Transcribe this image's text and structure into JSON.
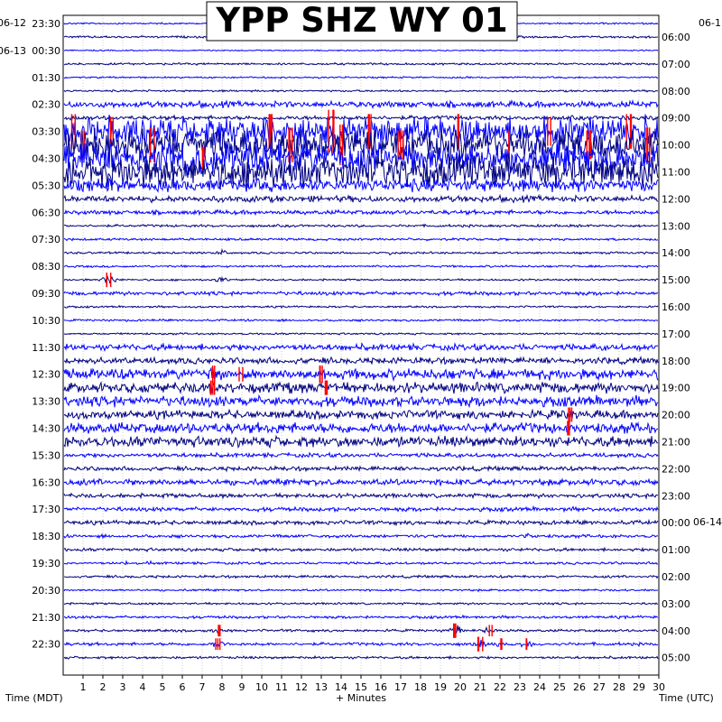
{
  "chart_data": {
    "type": "line",
    "title": "YPP SHZ WY 01",
    "xlabel": "+ Minutes",
    "xlim": [
      0,
      30
    ],
    "x_ticks": [
      "1",
      "2",
      "3",
      "4",
      "5",
      "6",
      "7",
      "8",
      "9",
      "10",
      "11",
      "12",
      "13",
      "14",
      "15",
      "16",
      "17",
      "18",
      "19",
      "20",
      "21",
      "22",
      "23",
      "24",
      "25",
      "26",
      "27",
      "28",
      "29",
      "30"
    ],
    "left_axis_title": "Time (MDT)",
    "right_axis_title": "Time (UTC)",
    "left_date_labels": [
      "06-12",
      "06-13"
    ],
    "right_date_labels": [
      "06-1",
      "06-14"
    ],
    "left_time_labels": [
      "23:30",
      "00:30",
      "01:30",
      "02:30",
      "03:30",
      "04:30",
      "05:30",
      "06:30",
      "07:30",
      "08:30",
      "09:30",
      "10:30",
      "11:30",
      "12:30",
      "13:30",
      "14:30",
      "15:30",
      "16:30",
      "17:30",
      "18:30",
      "19:30",
      "20:30",
      "21:30",
      "22:30"
    ],
    "right_time_labels": [
      "06:00",
      "07:00",
      "08:00",
      "09:00",
      "10:00",
      "11:00",
      "12:00",
      "13:00",
      "14:00",
      "15:00",
      "16:00",
      "17:00",
      "18:00",
      "19:00",
      "20:00",
      "21:00",
      "22:00",
      "23:00",
      "00:00",
      "01:00",
      "02:00",
      "03:00",
      "04:00",
      "05:00"
    ],
    "trace_colors": [
      "#0000ff",
      "#000080"
    ],
    "clip_color": "#ff0000",
    "rows_per_label": 2,
    "trace_amplitude": [
      0.8,
      1,
      0.6,
      1,
      0.8,
      0.9,
      3,
      2,
      14,
      14,
      15,
      15,
      6,
      3,
      2,
      1.2,
      1.1,
      1,
      1,
      0.9,
      1.8,
      0.9,
      1,
      0.9,
      3,
      3,
      5,
      5,
      5,
      4,
      5,
      5,
      2,
      2,
      3,
      2,
      2,
      2,
      1.5,
      1.5,
      1.2,
      1.2,
      1,
      1,
      1.3,
      1.2,
      1.5,
      1.2
    ],
    "events": [
      {
        "row": 8,
        "minute": 0.5,
        "size": 12,
        "clip": true
      },
      {
        "row": 9,
        "minute": 1,
        "size": 10,
        "clip": true
      },
      {
        "row": 8,
        "minute": 2.5,
        "size": 10,
        "clip": true
      },
      {
        "row": 9,
        "minute": 4.5,
        "size": 12,
        "clip": true
      },
      {
        "row": 10,
        "minute": 7,
        "size": 8,
        "clip": true
      },
      {
        "row": 10,
        "minute": 7.5,
        "size": 10,
        "clip": false
      },
      {
        "row": 8,
        "minute": 10.5,
        "size": 12,
        "clip": true
      },
      {
        "row": 9,
        "minute": 11.5,
        "size": 12,
        "clip": true
      },
      {
        "row": 8,
        "minute": 13.5,
        "size": 15,
        "clip": true
      },
      {
        "row": 9,
        "minute": 14,
        "size": 14,
        "clip": true
      },
      {
        "row": 8,
        "minute": 15.5,
        "size": 12,
        "clip": true
      },
      {
        "row": 9,
        "minute": 17,
        "size": 10,
        "clip": true
      },
      {
        "row": 8,
        "minute": 20,
        "size": 12,
        "clip": true
      },
      {
        "row": 9,
        "minute": 22.5,
        "size": 10,
        "clip": true
      },
      {
        "row": 8,
        "minute": 24.5,
        "size": 10,
        "clip": true
      },
      {
        "row": 9,
        "minute": 26.5,
        "size": 10,
        "clip": true
      },
      {
        "row": 8,
        "minute": 28.5,
        "size": 12,
        "clip": true
      },
      {
        "row": 9,
        "minute": 29.5,
        "size": 12,
        "clip": true
      },
      {
        "row": 11,
        "minute": 1,
        "size": 4,
        "clip": false
      },
      {
        "row": 17,
        "minute": 8,
        "size": 3,
        "clip": false
      },
      {
        "row": 17,
        "minute": 16.5,
        "size": 2,
        "clip": false
      },
      {
        "row": 19,
        "minute": 8,
        "size": 3,
        "clip": false
      },
      {
        "row": 19,
        "minute": 2.3,
        "size": 5,
        "clip": true
      },
      {
        "row": 26,
        "minute": 7.5,
        "size": 6,
        "clip": true
      },
      {
        "row": 27,
        "minute": 7.5,
        "size": 5,
        "clip": true
      },
      {
        "row": 26,
        "minute": 9,
        "size": 5,
        "clip": true
      },
      {
        "row": 27,
        "minute": 11,
        "size": 5,
        "clip": false
      },
      {
        "row": 26,
        "minute": 13,
        "size": 6,
        "clip": true
      },
      {
        "row": 27,
        "minute": 13.3,
        "size": 5,
        "clip": true
      },
      {
        "row": 29,
        "minute": 25.5,
        "size": 5,
        "clip": true
      },
      {
        "row": 30,
        "minute": 25.5,
        "size": 5,
        "clip": true
      },
      {
        "row": 40,
        "minute": 3.2,
        "size": 2,
        "clip": false
      },
      {
        "row": 40,
        "minute": 4.3,
        "size": 2,
        "clip": false
      },
      {
        "row": 38,
        "minute": 23.3,
        "size": 3,
        "clip": false
      },
      {
        "row": 45,
        "minute": 7.8,
        "size": 4,
        "clip": true
      },
      {
        "row": 46,
        "minute": 7.8,
        "size": 4,
        "clip": true
      },
      {
        "row": 45,
        "minute": 19.8,
        "size": 5,
        "clip": true
      },
      {
        "row": 46,
        "minute": 21,
        "size": 5,
        "clip": true
      },
      {
        "row": 45,
        "minute": 21.5,
        "size": 4,
        "clip": true
      },
      {
        "row": 46,
        "minute": 22,
        "size": 4,
        "clip": true
      },
      {
        "row": 46,
        "minute": 23.3,
        "size": 4,
        "clip": true
      }
    ]
  }
}
